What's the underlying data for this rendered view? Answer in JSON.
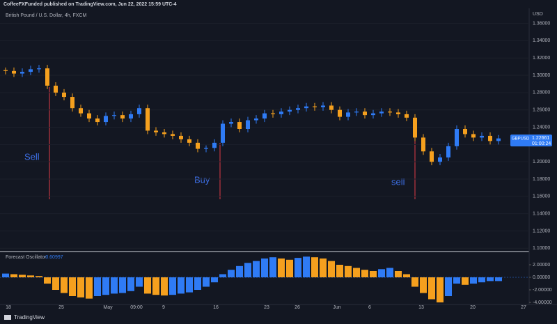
{
  "header": "CoffeeFXFunded published on TradingView.com, Jun 22, 2022 15:59 UTC-4",
  "footer": "TradingView",
  "chart_data": {
    "type": "candlestick",
    "title": "British Pound / U.S. Dollar, 4h, FXCM",
    "y_axis_label": "USD",
    "symbol": "GBPUSD",
    "last_price": {
      "value": 1.22661,
      "label": "1.22661"
    },
    "countdown": "01:00:24",
    "up_color": "#2f7bf5",
    "down_color": "#f5a01e",
    "annotations": [
      "Sell",
      "Buy",
      "sell"
    ],
    "x_labels": [
      "18",
      "25",
      "May",
      "09:00",
      "9",
      "16",
      "23",
      "26",
      "Jun",
      "6",
      "13",
      "20",
      "27"
    ],
    "open": [
      1.306,
      1.305,
      1.302,
      1.304,
      1.307,
      1.308,
      1.288,
      1.28,
      1.275,
      1.262,
      1.256,
      1.25,
      1.246,
      1.253,
      1.254,
      1.25,
      1.255,
      1.262,
      1.236,
      1.234,
      1.232,
      1.23,
      1.226,
      1.222,
      1.215,
      1.216,
      1.222,
      1.244,
      1.246,
      1.238,
      1.248,
      1.25,
      1.256,
      1.255,
      1.258,
      1.26,
      1.262,
      1.264,
      1.263,
      1.265,
      1.26,
      1.252,
      1.257,
      1.258,
      1.254,
      1.256,
      1.258,
      1.257,
      1.255,
      1.251,
      1.228,
      1.212,
      1.2,
      1.205,
      1.218,
      1.238,
      1.232,
      1.228,
      1.23,
      1.224
    ],
    "high": [
      1.309,
      1.309,
      1.308,
      1.311,
      1.312,
      1.312,
      1.292,
      1.284,
      1.279,
      1.266,
      1.26,
      1.254,
      1.257,
      1.258,
      1.258,
      1.259,
      1.266,
      1.266,
      1.24,
      1.238,
      1.236,
      1.234,
      1.23,
      1.226,
      1.219,
      1.226,
      1.248,
      1.25,
      1.25,
      1.252,
      1.254,
      1.26,
      1.26,
      1.262,
      1.264,
      1.266,
      1.268,
      1.268,
      1.269,
      1.269,
      1.264,
      1.261,
      1.262,
      1.262,
      1.26,
      1.262,
      1.262,
      1.261,
      1.259,
      1.255,
      1.232,
      1.216,
      1.209,
      1.222,
      1.242,
      1.242,
      1.236,
      1.234,
      1.234,
      1.231
    ],
    "low": [
      1.301,
      1.298,
      1.298,
      1.3,
      1.303,
      1.284,
      1.276,
      1.271,
      1.258,
      1.252,
      1.246,
      1.242,
      1.242,
      1.249,
      1.246,
      1.246,
      1.251,
      1.232,
      1.23,
      1.228,
      1.226,
      1.222,
      1.218,
      1.211,
      1.211,
      1.212,
      1.218,
      1.24,
      1.234,
      1.234,
      1.244,
      1.246,
      1.251,
      1.251,
      1.254,
      1.256,
      1.258,
      1.259,
      1.259,
      1.256,
      1.248,
      1.248,
      1.253,
      1.25,
      1.25,
      1.252,
      1.253,
      1.251,
      1.247,
      1.224,
      1.208,
      1.196,
      1.196,
      1.201,
      1.214,
      1.228,
      1.224,
      1.224,
      1.22,
      1.22
    ],
    "close": [
      1.305,
      1.302,
      1.304,
      1.307,
      1.308,
      1.288,
      1.28,
      1.275,
      1.262,
      1.256,
      1.25,
      1.246,
      1.253,
      1.254,
      1.25,
      1.255,
      1.262,
      1.236,
      1.234,
      1.232,
      1.23,
      1.226,
      1.222,
      1.215,
      1.216,
      1.222,
      1.244,
      1.246,
      1.238,
      1.248,
      1.25,
      1.256,
      1.255,
      1.258,
      1.26,
      1.262,
      1.264,
      1.263,
      1.265,
      1.26,
      1.252,
      1.257,
      1.258,
      1.254,
      1.256,
      1.258,
      1.257,
      1.255,
      1.251,
      1.228,
      1.212,
      1.2,
      1.205,
      1.218,
      1.238,
      1.232,
      1.228,
      1.23,
      1.224,
      1.227
    ],
    "ylim": [
      1.097,
      1.379
    ],
    "yticks": [
      {
        "value": 1.1,
        "label": "1.10000"
      },
      {
        "value": 1.12,
        "label": "1.12000"
      },
      {
        "value": 1.14,
        "label": "1.14000"
      },
      {
        "value": 1.16,
        "label": "1.16000"
      },
      {
        "value": 1.18,
        "label": "1.18000"
      },
      {
        "value": 1.2,
        "label": "1.20000"
      },
      {
        "value": 1.22,
        "label": "1.22000"
      },
      {
        "value": 1.24,
        "label": "1.24000"
      },
      {
        "value": 1.26,
        "label": "1.26000"
      },
      {
        "value": 1.28,
        "label": "1.28000"
      },
      {
        "value": 1.3,
        "label": "1.30000"
      },
      {
        "value": 1.32,
        "label": "1.32000"
      },
      {
        "value": 1.34,
        "label": "1.34000"
      },
      {
        "value": 1.36,
        "label": "1.36000"
      }
    ],
    "oscillator": {
      "name": "Forecast Oscillator",
      "last": {
        "value": -0.60997,
        "label": "-0.60997"
      },
      "values": [
        0.6,
        0.5,
        0.4,
        0.3,
        0.2,
        -1.0,
        -2.0,
        -2.5,
        -3.0,
        -3.2,
        -3.4,
        -3.0,
        -2.8,
        -2.6,
        -2.5,
        -2.2,
        -1.5,
        -2.6,
        -2.8,
        -2.9,
        -2.8,
        -2.6,
        -2.4,
        -2.0,
        -1.5,
        -0.8,
        0.5,
        1.2,
        1.8,
        2.3,
        2.6,
        3.0,
        3.2,
        3.0,
        2.8,
        3.1,
        3.3,
        3.2,
        3.0,
        2.6,
        2.0,
        1.8,
        1.5,
        1.2,
        1.0,
        1.3,
        1.5,
        1.0,
        0.5,
        -1.5,
        -2.5,
        -3.5,
        -4.0,
        -3.0,
        -1.0,
        -1.2,
        -1.0,
        -0.8,
        -0.6,
        -0.6
      ],
      "ylim": [
        -4.4,
        4.0
      ],
      "yticks": [
        {
          "value": 2,
          "label": "2.00000"
        },
        {
          "value": 0,
          "label": "0.00000"
        },
        {
          "value": -2,
          "label": "-2.00000"
        },
        {
          "value": -4,
          "label": "-4.00000"
        }
      ]
    }
  }
}
